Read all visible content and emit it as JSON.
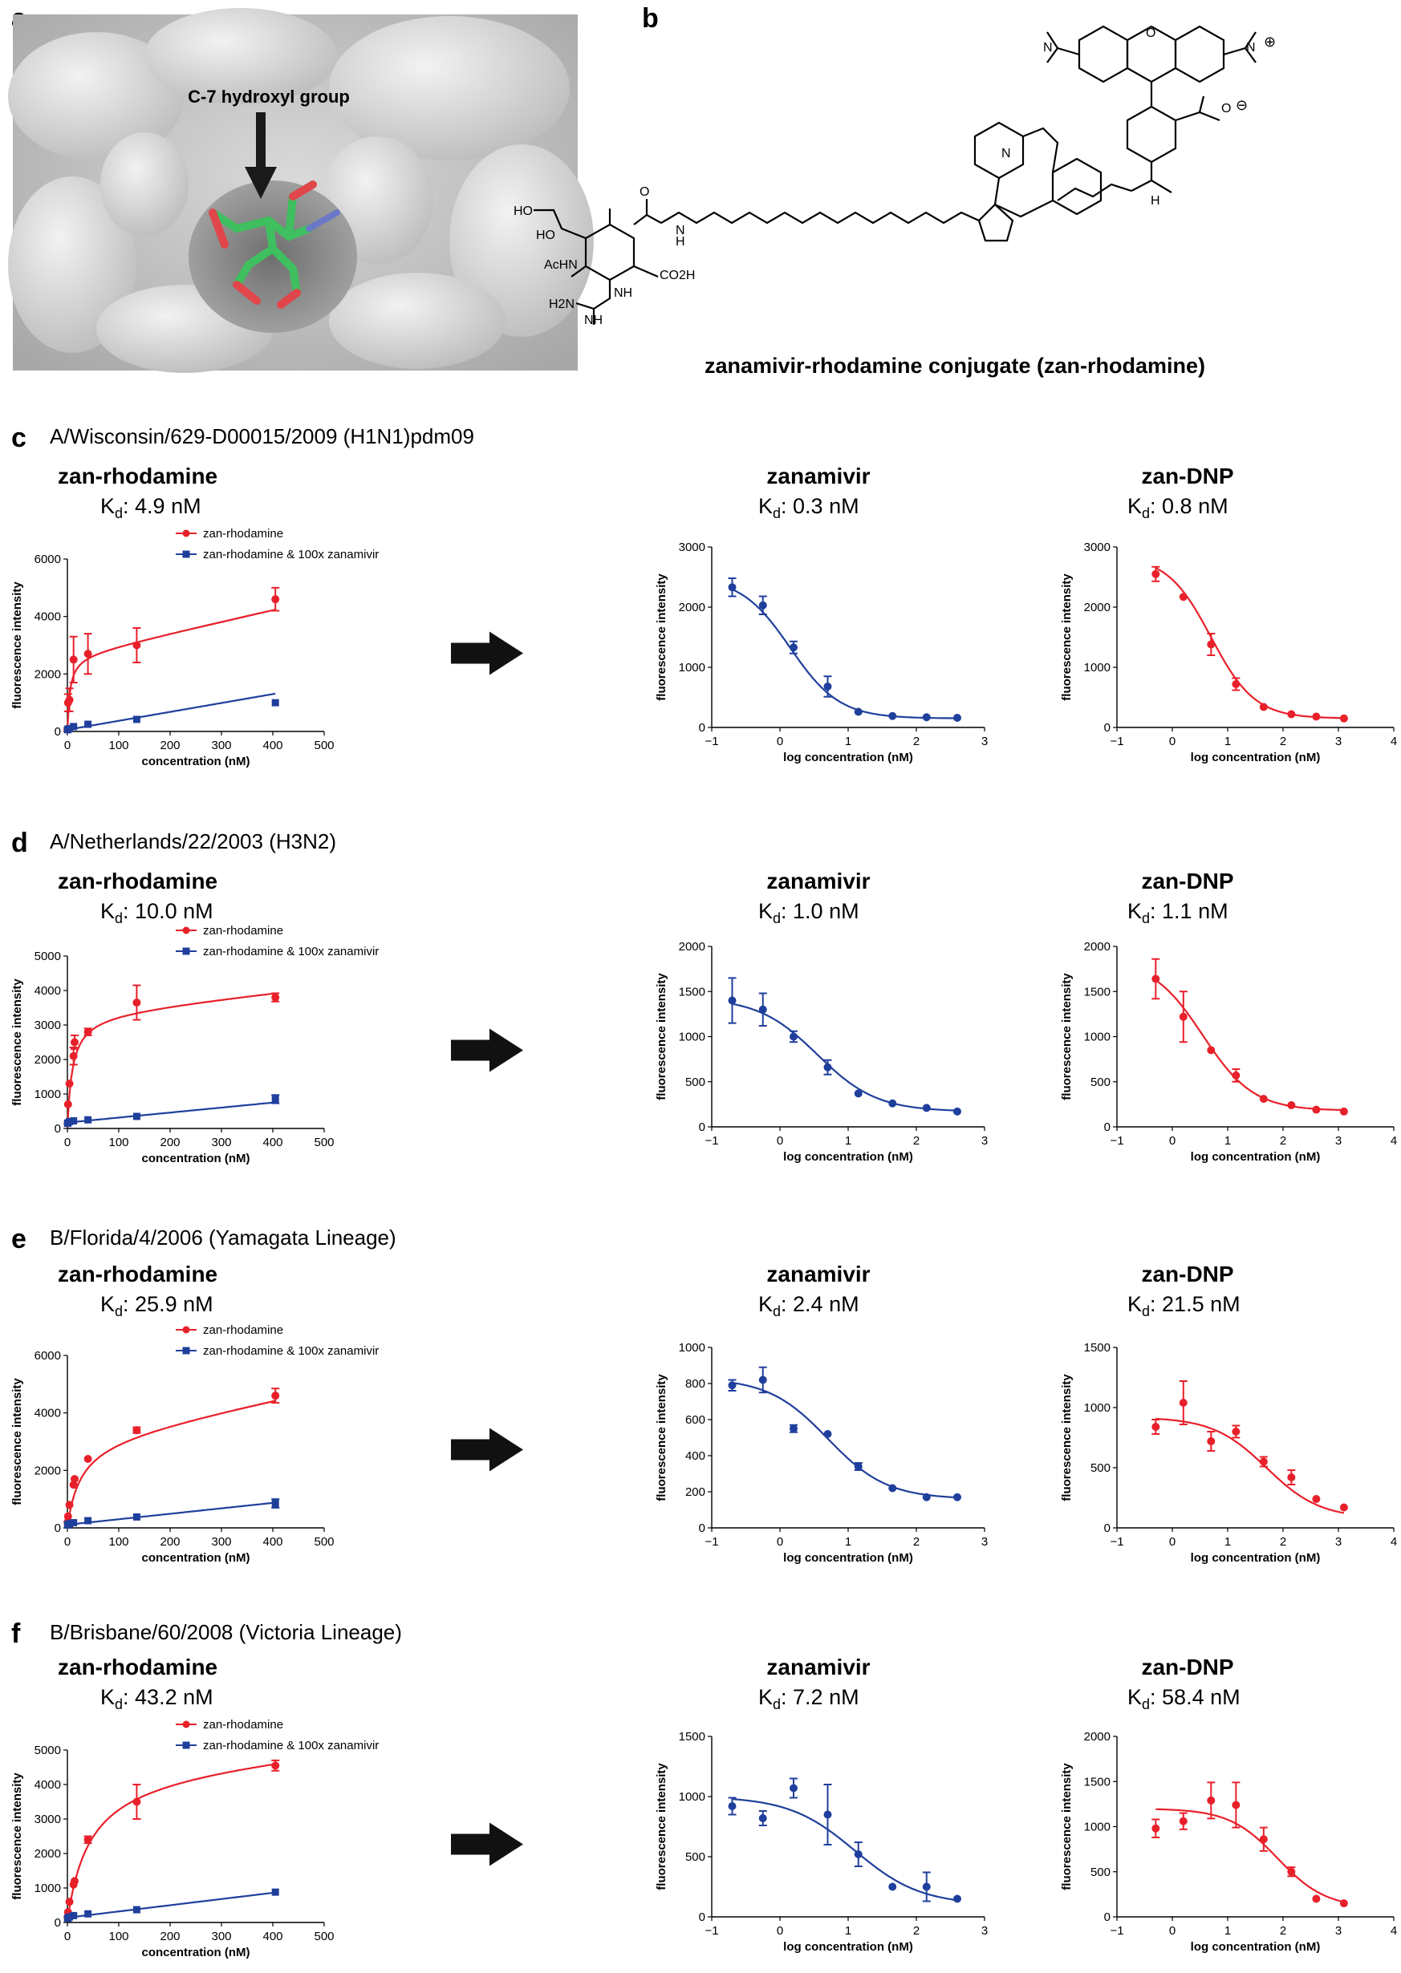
{
  "panels": {
    "a": {
      "label": "a",
      "annotation": "C-7 hydroxyl group"
    },
    "b": {
      "label": "b",
      "caption": "zanamivir-rhodamine conjugate (zan-rhodamine)",
      "atoms": {
        "ac_hn": "AcHN",
        "co2h": "CO2H",
        "ho1": "HO",
        "ho2": "HO",
        "o_carb": "O",
        "nh1": "H",
        "nh2": "N",
        "n_guan": "NH",
        "h2n": "H2N",
        "nh_imine": "NH",
        "n_amide": "N",
        "n_right": "H",
        "o_ester": "O",
        "o_carboxylate": "O",
        "charge_neg": "⊖",
        "charge_pos": "⊕"
      }
    }
  },
  "chart_data": [
    {
      "id": "c1",
      "row": "c",
      "type": "scatter",
      "title": "zan-rhodamine",
      "kd_label": "K",
      "kd_sub": "d",
      "kd_value": ": 4.9 nM",
      "row_label": "c",
      "row_title": "A/Wisconsin/629-D00015/2009 (H1N1)pdm09",
      "xlabel": "concentration (nM)",
      "ylabel": "fluorescence intensity",
      "xlim": [
        0,
        500
      ],
      "ylim": [
        0,
        6000
      ],
      "xticks": [
        0,
        100,
        200,
        300,
        400,
        500
      ],
      "yticks": [
        0,
        2000,
        4000,
        6000
      ],
      "series": [
        {
          "name": "zan-rhodamine",
          "color": "#e8202a",
          "marker": "circle",
          "x": [
            0.4,
            1.2,
            4,
            12,
            40,
            135,
            405
          ],
          "y": [
            80,
            1000,
            1100,
            2500,
            2700,
            3000,
            4600
          ],
          "err": [
            50,
            300,
            400,
            800,
            700,
            600,
            400
          ],
          "fit": {
            "kind": "hyperbola_linear",
            "bmax": 2600,
            "kd": 4.9,
            "ns": 4.0
          }
        },
        {
          "name": "zan-rhodamine & 100x zanamivir",
          "color": "#1f3f9c",
          "marker": "square",
          "x": [
            0.4,
            1.2,
            4,
            12,
            40,
            135,
            405
          ],
          "y": [
            60,
            80,
            100,
            170,
            250,
            420,
            1000
          ],
          "err": [
            0,
            0,
            0,
            0,
            0,
            0,
            0
          ],
          "fit": {
            "kind": "linear",
            "slope": 3.1,
            "intercept": 60
          }
        }
      ]
    },
    {
      "id": "c2",
      "row": "c",
      "type": "line",
      "title": "zanamivir",
      "kd_label": "K",
      "kd_sub": "d",
      "kd_value": ": 0.3 nM",
      "xlabel": "log concentration (nM)",
      "ylabel": "fluorescence intensity",
      "xlim": [
        -1,
        3
      ],
      "ylim": [
        0,
        3000
      ],
      "xticks": [
        -1,
        0,
        1,
        2,
        3
      ],
      "yticks": [
        0,
        1000,
        2000,
        3000
      ],
      "series": [
        {
          "name": "zanamivir",
          "color": "#1f3f9c",
          "marker": "circle",
          "x": [
            -0.7,
            -0.25,
            0.2,
            0.7,
            1.15,
            1.65,
            2.15,
            2.6
          ],
          "y": [
            2330,
            2030,
            1330,
            680,
            260,
            190,
            170,
            160
          ],
          "err": [
            150,
            150,
            100,
            170,
            0,
            0,
            0,
            0
          ],
          "fit": {
            "bottom": 150,
            "top": 2500,
            "logic50": 0.15,
            "slope": 1.2
          }
        }
      ]
    },
    {
      "id": "c3",
      "row": "c",
      "type": "line",
      "title": "zan-DNP",
      "kd_label": "K",
      "kd_sub": "d",
      "kd_value": ": 0.8 nM",
      "xlabel": "log concentration (nM)",
      "ylabel": "fluorescence intensity",
      "xlim": [
        -1,
        4
      ],
      "ylim": [
        0,
        3000
      ],
      "xticks": [
        -1,
        0,
        1,
        2,
        3,
        4
      ],
      "yticks": [
        0,
        1000,
        2000,
        3000
      ],
      "series": [
        {
          "name": "zan-DNP",
          "color": "#e8202a",
          "marker": "circle",
          "x": [
            -0.3,
            0.2,
            0.7,
            1.15,
            1.65,
            2.15,
            2.6,
            3.1
          ],
          "y": [
            2550,
            2170,
            1380,
            720,
            340,
            220,
            180,
            150
          ],
          "err": [
            120,
            0,
            180,
            100,
            0,
            0,
            0,
            0
          ],
          "fit": {
            "bottom": 150,
            "top": 2850,
            "logic50": 0.7,
            "slope": 1.1
          }
        }
      ]
    },
    {
      "id": "d1",
      "row": "d",
      "type": "scatter",
      "title": "zan-rhodamine",
      "kd_label": "K",
      "kd_sub": "d",
      "kd_value": ": 10.0 nM",
      "row_label": "d",
      "row_title": "A/Netherlands/22/2003 (H3N2)",
      "xlabel": "concentration (nM)",
      "ylabel": "fluorescence intensity",
      "xlim": [
        0,
        500
      ],
      "ylim": [
        0,
        5000
      ],
      "xticks": [
        0,
        100,
        200,
        300,
        400,
        500
      ],
      "yticks": [
        0,
        1000,
        2000,
        3000,
        4000,
        5000
      ],
      "series": [
        {
          "name": "zan-rhodamine",
          "color": "#e8202a",
          "marker": "circle",
          "x": [
            0.4,
            1.2,
            4,
            12,
            14,
            40,
            135,
            405
          ],
          "y": [
            150,
            700,
            1300,
            2100,
            2500,
            2800,
            3650,
            3800
          ],
          "err": [
            0,
            0,
            0,
            250,
            200,
            100,
            500,
            120
          ],
          "fit": {
            "kind": "hyperbola_linear",
            "bmax": 3300,
            "kd": 10,
            "ns": 1.6
          }
        },
        {
          "name": "zan-rhodamine & 100x zanamivir",
          "color": "#1f3f9c",
          "marker": "square",
          "x": [
            0.4,
            1.2,
            4,
            12,
            40,
            135,
            405
          ],
          "y": [
            150,
            160,
            200,
            220,
            250,
            350,
            850
          ],
          "err": [
            0,
            0,
            0,
            0,
            0,
            0,
            120
          ],
          "fit": {
            "kind": "linear",
            "slope": 1.45,
            "intercept": 170
          }
        }
      ]
    },
    {
      "id": "d2",
      "row": "d",
      "type": "line",
      "title": "zanamivir",
      "kd_label": "K",
      "kd_sub": "d",
      "kd_value": ": 1.0 nM",
      "xlabel": "log concentration (nM)",
      "ylabel": "fluorescence intensity",
      "xlim": [
        -1,
        3
      ],
      "ylim": [
        0,
        2000
      ],
      "xticks": [
        -1,
        0,
        1,
        2,
        3
      ],
      "yticks": [
        0,
        500,
        1000,
        1500,
        2000
      ],
      "series": [
        {
          "name": "zanamivir",
          "color": "#1f3f9c",
          "marker": "circle",
          "x": [
            -0.7,
            -0.25,
            0.2,
            0.7,
            1.15,
            1.65,
            2.15,
            2.6
          ],
          "y": [
            1400,
            1300,
            1000,
            660,
            370,
            260,
            210,
            170
          ],
          "err": [
            250,
            180,
            60,
            80,
            0,
            0,
            0,
            0
          ],
          "fit": {
            "bottom": 170,
            "top": 1430,
            "logic50": 0.55,
            "slope": 1.0
          }
        }
      ]
    },
    {
      "id": "d3",
      "row": "d",
      "type": "line",
      "title": "zan-DNP",
      "kd_label": "K",
      "kd_sub": "d",
      "kd_value": ": 1.1 nM",
      "xlabel": "log concentration (nM)",
      "ylabel": "fluorescence intensity",
      "xlim": [
        -1,
        4
      ],
      "ylim": [
        0,
        2000
      ],
      "xticks": [
        -1,
        0,
        1,
        2,
        3,
        4
      ],
      "yticks": [
        0,
        500,
        1000,
        1500,
        2000
      ],
      "series": [
        {
          "name": "zan-DNP",
          "color": "#e8202a",
          "marker": "circle",
          "x": [
            -0.3,
            0.2,
            0.7,
            1.15,
            1.65,
            2.15,
            2.6,
            3.1
          ],
          "y": [
            1640,
            1220,
            850,
            570,
            310,
            240,
            190,
            170
          ],
          "err": [
            220,
            280,
            0,
            70,
            0,
            0,
            0,
            0
          ],
          "fit": {
            "bottom": 180,
            "top": 1850,
            "logic50": 0.55,
            "slope": 0.95
          }
        }
      ]
    },
    {
      "id": "e1",
      "row": "e",
      "type": "scatter",
      "title": "zan-rhodamine",
      "kd_label": "K",
      "kd_sub": "d",
      "kd_value": ": 25.9 nM",
      "row_label": "e",
      "row_title": "B/Florida/4/2006 (Yamagata Lineage)",
      "xlabel": "concentration (nM)",
      "ylabel": "fluorescence intensity",
      "xlim": [
        0,
        500
      ],
      "ylim": [
        0,
        6000
      ],
      "xticks": [
        0,
        100,
        200,
        300,
        400,
        500
      ],
      "yticks": [
        0,
        2000,
        4000,
        6000
      ],
      "series": [
        {
          "name": "zan-rhodamine",
          "color": "#e8202a",
          "marker": "circle",
          "x": [
            0.4,
            1.2,
            4,
            12,
            14,
            40,
            135,
            405
          ],
          "y": [
            200,
            400,
            800,
            1500,
            1700,
            2400,
            3400,
            4600
          ],
          "err": [
            0,
            0,
            0,
            0,
            0,
            0,
            100,
            250
          ],
          "fit": {
            "kind": "hyperbola_linear",
            "bmax": 3100,
            "kd": 25.9,
            "ns": 3.6
          }
        },
        {
          "name": "zan-rhodamine & 100x zanamivir",
          "color": "#1f3f9c",
          "marker": "square",
          "x": [
            0.4,
            1.2,
            4,
            12,
            40,
            135,
            405
          ],
          "y": [
            100,
            120,
            150,
            180,
            250,
            380,
            850
          ],
          "err": [
            0,
            0,
            0,
            0,
            0,
            0,
            150
          ],
          "fit": {
            "kind": "linear",
            "slope": 1.9,
            "intercept": 110
          }
        }
      ]
    },
    {
      "id": "e2",
      "row": "e",
      "type": "line",
      "title": "zanamivir",
      "kd_label": "K",
      "kd_sub": "d",
      "kd_value": ": 2.4 nM",
      "xlabel": "log concentration (nM)",
      "ylabel": "fluorescence intensity",
      "xlim": [
        -1,
        3
      ],
      "ylim": [
        0,
        1000
      ],
      "xticks": [
        -1,
        0,
        1,
        2,
        3
      ],
      "yticks": [
        0,
        200,
        400,
        600,
        800,
        1000
      ],
      "series": [
        {
          "name": "zanamivir",
          "color": "#1f3f9c",
          "marker": "circle",
          "x": [
            -0.7,
            -0.25,
            0.2,
            0.7,
            1.15,
            1.65,
            2.15,
            2.6
          ],
          "y": [
            790,
            820,
            550,
            520,
            340,
            220,
            170,
            170
          ],
          "err": [
            30,
            70,
            20,
            0,
            20,
            0,
            0,
            0
          ],
          "fit": {
            "bottom": 160,
            "top": 830,
            "logic50": 0.7,
            "slope": 1.0
          }
        }
      ]
    },
    {
      "id": "e3",
      "row": "e",
      "type": "line",
      "title": "zan-DNP",
      "kd_label": "K",
      "kd_sub": "d",
      "kd_value": ": 21.5 nM",
      "xlabel": "log concentration (nM)",
      "ylabel": "fluorescence intensity",
      "xlim": [
        -1,
        4
      ],
      "ylim": [
        0,
        1500
      ],
      "xticks": [
        -1,
        0,
        1,
        2,
        3,
        4
      ],
      "yticks": [
        0,
        500,
        1000,
        1500
      ],
      "series": [
        {
          "name": "zan-DNP",
          "color": "#e8202a",
          "marker": "circle",
          "x": [
            -0.3,
            0.2,
            0.7,
            1.15,
            1.65,
            2.15,
            2.6,
            3.1
          ],
          "y": [
            840,
            1040,
            720,
            800,
            550,
            420,
            240,
            170
          ],
          "err": [
            60,
            180,
            80,
            50,
            40,
            60,
            0,
            0
          ],
          "fit": {
            "bottom": 80,
            "top": 920,
            "logic50": 1.7,
            "slope": 0.9
          }
        }
      ]
    },
    {
      "id": "f1",
      "row": "f",
      "type": "scatter",
      "title": "zan-rhodamine",
      "kd_label": "K",
      "kd_sub": "d",
      "kd_value": ": 43.2 nM",
      "row_label": "f",
      "row_title": "B/Brisbane/60/2008 (Victoria Lineage)",
      "xlabel": "concentration (nM)",
      "ylabel": "fluorescence intensity",
      "xlim": [
        0,
        500
      ],
      "ylim": [
        0,
        5000
      ],
      "xticks": [
        0,
        100,
        200,
        300,
        400,
        500
      ],
      "yticks": [
        0,
        1000,
        2000,
        3000,
        4000,
        5000
      ],
      "series": [
        {
          "name": "zan-rhodamine",
          "color": "#e8202a",
          "marker": "circle",
          "x": [
            0.4,
            1.2,
            4,
            12,
            14,
            40,
            135,
            405
          ],
          "y": [
            150,
            300,
            600,
            1100,
            1200,
            2400,
            3500,
            4550
          ],
          "err": [
            0,
            0,
            0,
            0,
            0,
            100,
            500,
            150
          ],
          "fit": {
            "kind": "hyperbola_linear",
            "bmax": 4400,
            "kd": 43.2,
            "ns": 1.4
          }
        },
        {
          "name": "zan-rhodamine & 100x zanamivir",
          "color": "#1f3f9c",
          "marker": "square",
          "x": [
            0.4,
            1.2,
            4,
            12,
            40,
            135,
            405
          ],
          "y": [
            120,
            130,
            160,
            200,
            250,
            370,
            880
          ],
          "err": [
            0,
            0,
            0,
            0,
            0,
            0,
            0
          ],
          "fit": {
            "kind": "linear",
            "slope": 1.8,
            "intercept": 140
          }
        }
      ]
    },
    {
      "id": "f2",
      "row": "f",
      "type": "line",
      "title": "zanamivir",
      "kd_label": "K",
      "kd_sub": "d",
      "kd_value": ": 7.2 nM",
      "xlabel": "log concentration (nM)",
      "ylabel": "fluorescence intensity",
      "xlim": [
        -1,
        3
      ],
      "ylim": [
        0,
        1500
      ],
      "xticks": [
        -1,
        0,
        1,
        2,
        3
      ],
      "yticks": [
        0,
        500,
        1000,
        1500
      ],
      "series": [
        {
          "name": "zanamivir",
          "color": "#1f3f9c",
          "marker": "circle",
          "x": [
            -0.7,
            -0.25,
            0.2,
            0.7,
            1.15,
            1.65,
            2.15,
            2.6
          ],
          "y": [
            920,
            820,
            1070,
            850,
            520,
            250,
            250,
            150
          ],
          "err": [
            70,
            60,
            80,
            250,
            100,
            0,
            120,
            0
          ],
          "fit": {
            "bottom": 100,
            "top": 1000,
            "logic50": 1.1,
            "slope": 0.9
          }
        }
      ]
    },
    {
      "id": "f3",
      "row": "f",
      "type": "line",
      "title": "zan-DNP",
      "kd_label": "K",
      "kd_sub": "d",
      "kd_value": ": 58.4 nM",
      "xlabel": "log concentration (nM)",
      "ylabel": "fluorescence intensity",
      "xlim": [
        -1,
        4
      ],
      "ylim": [
        0,
        2000
      ],
      "xticks": [
        -1,
        0,
        1,
        2,
        3,
        4
      ],
      "yticks": [
        0,
        500,
        1000,
        1500,
        2000
      ],
      "series": [
        {
          "name": "zan-DNP",
          "color": "#e8202a",
          "marker": "circle",
          "x": [
            -0.3,
            0.2,
            0.7,
            1.15,
            1.65,
            2.15,
            2.6,
            3.1
          ],
          "y": [
            980,
            1060,
            1290,
            1240,
            860,
            500,
            200,
            150
          ],
          "err": [
            100,
            90,
            200,
            250,
            130,
            50,
            0,
            0
          ],
          "fit": {
            "bottom": 100,
            "top": 1200,
            "logic50": 1.9,
            "slope": 1.0
          }
        }
      ]
    }
  ]
}
